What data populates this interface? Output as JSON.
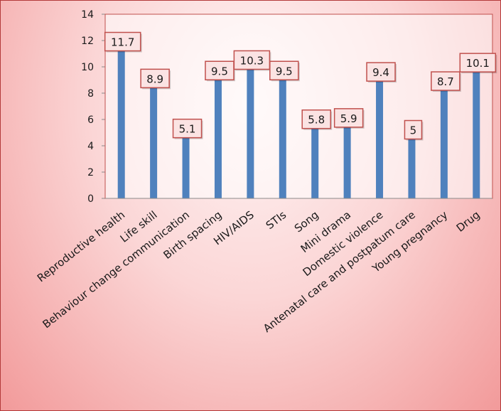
{
  "chart_data": {
    "type": "bar",
    "categories": [
      "Reproductive health",
      "Life skill",
      "Behaviour change communication",
      "Birth spacing",
      "HIV/AIDS",
      "STIs",
      "Song",
      "Mini drama",
      "Domestic violence",
      "Antenatal care and postpatum care",
      "Young pregnancy",
      "Drug"
    ],
    "values": [
      11.7,
      8.9,
      5.1,
      9.5,
      10.3,
      9.5,
      5.8,
      5.9,
      9.4,
      5,
      8.7,
      10.1
    ],
    "data_labels": [
      "11.7",
      "8.9",
      "5.1",
      "9.5",
      "10.3",
      "9.5",
      "5.8",
      "5.9",
      "9.4",
      "5",
      "8.7",
      "10.1"
    ],
    "ylim": [
      0,
      14
    ],
    "yticks": [
      0,
      2,
      4,
      6,
      8,
      10,
      12,
      14
    ],
    "grid": false,
    "legend": "none",
    "colors": {
      "bar": "#4f81bd",
      "label_border": "#c0504d",
      "label_fill": "#fbe3e3",
      "frame_border": "#b33a3a"
    }
  }
}
